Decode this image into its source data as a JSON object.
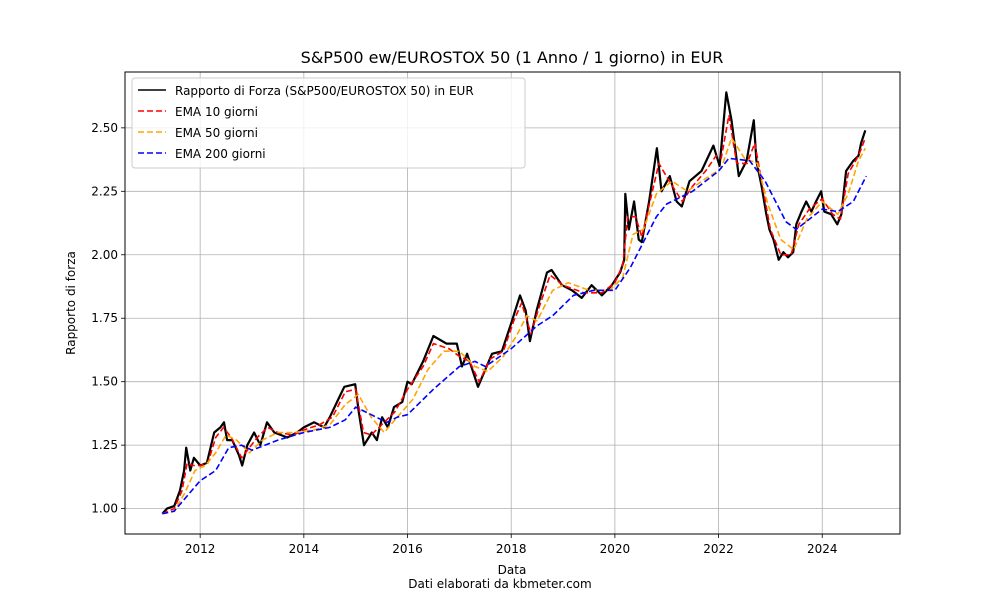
{
  "chart_data": {
    "type": "line",
    "title": "S&P500 ew/EUROSTOX 50 (1 Anno / 1 giorno) in EUR",
    "xlabel": "Data",
    "ylabel": "Rapporto di forza",
    "footnote": "Dati elaborati da kbmeter.com",
    "xlim": [
      2010.55,
      2025.5
    ],
    "ylim": [
      0.9,
      2.72
    ],
    "x_ticks": [
      2012,
      2014,
      2016,
      2018,
      2020,
      2022,
      2024
    ],
    "x_tick_labels": [
      "2012",
      "2014",
      "2016",
      "2018",
      "2020",
      "2022",
      "2024"
    ],
    "y_ticks": [
      1.0,
      1.25,
      1.5,
      1.75,
      2.0,
      2.25,
      2.5
    ],
    "y_tick_labels": [
      "1.00",
      "1.25",
      "1.50",
      "1.75",
      "2.00",
      "2.25",
      "2.50"
    ],
    "grid": true,
    "legend_position": "top-left",
    "series": [
      {
        "name": "Rapporto di Forza (S&P500/EUROSTOX 50) in EUR",
        "color": "#000000",
        "style": "solid",
        "points": [
          [
            2011.27,
            0.98
          ],
          [
            2011.36,
            1.0
          ],
          [
            2011.5,
            1.01
          ],
          [
            2011.61,
            1.07
          ],
          [
            2011.69,
            1.15
          ],
          [
            2011.73,
            1.24
          ],
          [
            2011.81,
            1.15
          ],
          [
            2011.88,
            1.2
          ],
          [
            2012.0,
            1.17
          ],
          [
            2012.13,
            1.18
          ],
          [
            2012.27,
            1.3
          ],
          [
            2012.39,
            1.32
          ],
          [
            2012.46,
            1.34
          ],
          [
            2012.52,
            1.27
          ],
          [
            2012.62,
            1.27
          ],
          [
            2012.75,
            1.21
          ],
          [
            2012.81,
            1.17
          ],
          [
            2012.91,
            1.25
          ],
          [
            2013.04,
            1.3
          ],
          [
            2013.16,
            1.25
          ],
          [
            2013.29,
            1.34
          ],
          [
            2013.43,
            1.3
          ],
          [
            2013.68,
            1.28
          ],
          [
            2013.87,
            1.3
          ],
          [
            2014.0,
            1.32
          ],
          [
            2014.2,
            1.34
          ],
          [
            2014.39,
            1.32
          ],
          [
            2014.5,
            1.36
          ],
          [
            2014.64,
            1.42
          ],
          [
            2014.78,
            1.48
          ],
          [
            2014.99,
            1.49
          ],
          [
            2015.06,
            1.38
          ],
          [
            2015.16,
            1.25
          ],
          [
            2015.31,
            1.3
          ],
          [
            2015.41,
            1.27
          ],
          [
            2015.51,
            1.36
          ],
          [
            2015.62,
            1.32
          ],
          [
            2015.74,
            1.4
          ],
          [
            2015.9,
            1.42
          ],
          [
            2016.0,
            1.5
          ],
          [
            2016.08,
            1.49
          ],
          [
            2016.3,
            1.58
          ],
          [
            2016.5,
            1.68
          ],
          [
            2016.75,
            1.65
          ],
          [
            2016.95,
            1.65
          ],
          [
            2017.05,
            1.56
          ],
          [
            2017.15,
            1.61
          ],
          [
            2017.36,
            1.48
          ],
          [
            2017.63,
            1.61
          ],
          [
            2017.82,
            1.62
          ],
          [
            2018.0,
            1.73
          ],
          [
            2018.17,
            1.84
          ],
          [
            2018.28,
            1.78
          ],
          [
            2018.36,
            1.66
          ],
          [
            2018.49,
            1.78
          ],
          [
            2018.69,
            1.93
          ],
          [
            2018.78,
            1.94
          ],
          [
            2018.98,
            1.88
          ],
          [
            2019.17,
            1.86
          ],
          [
            2019.36,
            1.83
          ],
          [
            2019.55,
            1.88
          ],
          [
            2019.75,
            1.84
          ],
          [
            2019.94,
            1.88
          ],
          [
            2020.1,
            1.93
          ],
          [
            2020.18,
            1.98
          ],
          [
            2020.2,
            2.24
          ],
          [
            2020.27,
            2.1
          ],
          [
            2020.37,
            2.21
          ],
          [
            2020.46,
            2.06
          ],
          [
            2020.52,
            2.05
          ],
          [
            2020.66,
            2.21
          ],
          [
            2020.81,
            2.42
          ],
          [
            2020.9,
            2.25
          ],
          [
            2021.06,
            2.31
          ],
          [
            2021.19,
            2.21
          ],
          [
            2021.29,
            2.19
          ],
          [
            2021.44,
            2.29
          ],
          [
            2021.67,
            2.33
          ],
          [
            2021.9,
            2.43
          ],
          [
            2022.02,
            2.35
          ],
          [
            2022.15,
            2.64
          ],
          [
            2022.25,
            2.53
          ],
          [
            2022.39,
            2.31
          ],
          [
            2022.54,
            2.37
          ],
          [
            2022.68,
            2.53
          ],
          [
            2022.73,
            2.37
          ],
          [
            2022.83,
            2.27
          ],
          [
            2022.92,
            2.16
          ],
          [
            2022.98,
            2.1
          ],
          [
            2023.06,
            2.06
          ],
          [
            2023.16,
            1.98
          ],
          [
            2023.25,
            2.01
          ],
          [
            2023.34,
            1.99
          ],
          [
            2023.44,
            2.01
          ],
          [
            2023.5,
            2.12
          ],
          [
            2023.6,
            2.17
          ],
          [
            2023.69,
            2.21
          ],
          [
            2023.79,
            2.17
          ],
          [
            2023.88,
            2.21
          ],
          [
            2023.98,
            2.25
          ],
          [
            2024.04,
            2.17
          ],
          [
            2024.17,
            2.16
          ],
          [
            2024.29,
            2.12
          ],
          [
            2024.37,
            2.16
          ],
          [
            2024.46,
            2.33
          ],
          [
            2024.6,
            2.37
          ],
          [
            2024.7,
            2.39
          ],
          [
            2024.75,
            2.44
          ],
          [
            2024.83,
            2.49
          ]
        ]
      },
      {
        "name": "EMA 10 giorni",
        "color": "#ff0000",
        "style": "dashed",
        "points": [
          [
            2011.27,
            0.98
          ],
          [
            2011.5,
            1.0
          ],
          [
            2011.65,
            1.07
          ],
          [
            2011.75,
            1.18
          ],
          [
            2011.85,
            1.17
          ],
          [
            2012.0,
            1.17
          ],
          [
            2012.15,
            1.18
          ],
          [
            2012.3,
            1.28
          ],
          [
            2012.45,
            1.32
          ],
          [
            2012.6,
            1.28
          ],
          [
            2012.8,
            1.2
          ],
          [
            2012.95,
            1.24
          ],
          [
            2013.1,
            1.28
          ],
          [
            2013.3,
            1.32
          ],
          [
            2013.5,
            1.3
          ],
          [
            2013.8,
            1.29
          ],
          [
            2014.0,
            1.31
          ],
          [
            2014.3,
            1.33
          ],
          [
            2014.55,
            1.36
          ],
          [
            2014.8,
            1.46
          ],
          [
            2015.0,
            1.47
          ],
          [
            2015.15,
            1.3
          ],
          [
            2015.3,
            1.29
          ],
          [
            2015.5,
            1.33
          ],
          [
            2015.75,
            1.38
          ],
          [
            2016.0,
            1.47
          ],
          [
            2016.3,
            1.56
          ],
          [
            2016.5,
            1.65
          ],
          [
            2016.8,
            1.63
          ],
          [
            2017.0,
            1.6
          ],
          [
            2017.2,
            1.58
          ],
          [
            2017.38,
            1.5
          ],
          [
            2017.6,
            1.59
          ],
          [
            2017.85,
            1.62
          ],
          [
            2018.05,
            1.74
          ],
          [
            2018.2,
            1.81
          ],
          [
            2018.38,
            1.69
          ],
          [
            2018.55,
            1.8
          ],
          [
            2018.75,
            1.92
          ],
          [
            2019.0,
            1.88
          ],
          [
            2019.4,
            1.85
          ],
          [
            2019.75,
            1.85
          ],
          [
            2020.0,
            1.89
          ],
          [
            2020.15,
            1.96
          ],
          [
            2020.25,
            2.15
          ],
          [
            2020.4,
            2.15
          ],
          [
            2020.52,
            2.07
          ],
          [
            2020.7,
            2.23
          ],
          [
            2020.85,
            2.36
          ],
          [
            2021.05,
            2.29
          ],
          [
            2021.3,
            2.21
          ],
          [
            2021.5,
            2.27
          ],
          [
            2021.75,
            2.33
          ],
          [
            2021.95,
            2.39
          ],
          [
            2022.05,
            2.38
          ],
          [
            2022.2,
            2.55
          ],
          [
            2022.35,
            2.36
          ],
          [
            2022.55,
            2.36
          ],
          [
            2022.7,
            2.44
          ],
          [
            2022.85,
            2.27
          ],
          [
            2023.0,
            2.1
          ],
          [
            2023.2,
            2.0
          ],
          [
            2023.4,
            2.0
          ],
          [
            2023.55,
            2.12
          ],
          [
            2023.75,
            2.18
          ],
          [
            2024.0,
            2.22
          ],
          [
            2024.2,
            2.16
          ],
          [
            2024.35,
            2.14
          ],
          [
            2024.5,
            2.32
          ],
          [
            2024.7,
            2.39
          ],
          [
            2024.83,
            2.46
          ]
        ]
      },
      {
        "name": "EMA 50 giorni",
        "color": "#ffa500",
        "style": "dashed",
        "points": [
          [
            2011.27,
            0.98
          ],
          [
            2011.5,
            0.99
          ],
          [
            2011.7,
            1.06
          ],
          [
            2011.9,
            1.15
          ],
          [
            2012.1,
            1.17
          ],
          [
            2012.3,
            1.22
          ],
          [
            2012.5,
            1.29
          ],
          [
            2012.7,
            1.27
          ],
          [
            2012.95,
            1.22
          ],
          [
            2013.2,
            1.27
          ],
          [
            2013.5,
            1.3
          ],
          [
            2013.8,
            1.3
          ],
          [
            2014.2,
            1.31
          ],
          [
            2014.5,
            1.33
          ],
          [
            2014.8,
            1.41
          ],
          [
            2015.05,
            1.45
          ],
          [
            2015.3,
            1.36
          ],
          [
            2015.55,
            1.3
          ],
          [
            2015.8,
            1.36
          ],
          [
            2016.1,
            1.43
          ],
          [
            2016.4,
            1.55
          ],
          [
            2016.7,
            1.62
          ],
          [
            2017.0,
            1.62
          ],
          [
            2017.3,
            1.56
          ],
          [
            2017.55,
            1.54
          ],
          [
            2017.85,
            1.6
          ],
          [
            2018.1,
            1.68
          ],
          [
            2018.3,
            1.76
          ],
          [
            2018.5,
            1.74
          ],
          [
            2018.8,
            1.86
          ],
          [
            2019.1,
            1.89
          ],
          [
            2019.5,
            1.86
          ],
          [
            2019.9,
            1.86
          ],
          [
            2020.15,
            1.91
          ],
          [
            2020.35,
            2.08
          ],
          [
            2020.55,
            2.1
          ],
          [
            2020.8,
            2.24
          ],
          [
            2021.1,
            2.29
          ],
          [
            2021.4,
            2.25
          ],
          [
            2021.75,
            2.3
          ],
          [
            2022.05,
            2.34
          ],
          [
            2022.25,
            2.46
          ],
          [
            2022.5,
            2.38
          ],
          [
            2022.75,
            2.36
          ],
          [
            2022.95,
            2.2
          ],
          [
            2023.2,
            2.06
          ],
          [
            2023.45,
            2.02
          ],
          [
            2023.7,
            2.14
          ],
          [
            2024.0,
            2.21
          ],
          [
            2024.3,
            2.16
          ],
          [
            2024.5,
            2.24
          ],
          [
            2024.7,
            2.37
          ],
          [
            2024.83,
            2.42
          ]
        ]
      },
      {
        "name": "EMA 200 giorni",
        "color": "#0000ff",
        "style": "dashed",
        "points": [
          [
            2011.27,
            0.98
          ],
          [
            2011.5,
            0.99
          ],
          [
            2011.75,
            1.05
          ],
          [
            2012.0,
            1.11
          ],
          [
            2012.3,
            1.15
          ],
          [
            2012.55,
            1.24
          ],
          [
            2012.8,
            1.25
          ],
          [
            2013.0,
            1.23
          ],
          [
            2013.5,
            1.27
          ],
          [
            2014.0,
            1.3
          ],
          [
            2014.5,
            1.32
          ],
          [
            2014.8,
            1.35
          ],
          [
            2015.0,
            1.4
          ],
          [
            2015.3,
            1.37
          ],
          [
            2015.6,
            1.34
          ],
          [
            2015.8,
            1.36
          ],
          [
            2016.0,
            1.37
          ],
          [
            2016.5,
            1.47
          ],
          [
            2017.0,
            1.56
          ],
          [
            2017.3,
            1.58
          ],
          [
            2017.5,
            1.56
          ],
          [
            2018.0,
            1.63
          ],
          [
            2018.5,
            1.72
          ],
          [
            2018.8,
            1.76
          ],
          [
            2019.2,
            1.84
          ],
          [
            2019.6,
            1.86
          ],
          [
            2020.0,
            1.86
          ],
          [
            2020.3,
            1.95
          ],
          [
            2020.5,
            2.03
          ],
          [
            2020.8,
            2.15
          ],
          [
            2021.0,
            2.2
          ],
          [
            2021.5,
            2.25
          ],
          [
            2022.0,
            2.33
          ],
          [
            2022.2,
            2.38
          ],
          [
            2022.6,
            2.37
          ],
          [
            2022.9,
            2.29
          ],
          [
            2023.3,
            2.13
          ],
          [
            2023.5,
            2.1
          ],
          [
            2024.0,
            2.18
          ],
          [
            2024.3,
            2.17
          ],
          [
            2024.6,
            2.21
          ],
          [
            2024.85,
            2.31
          ]
        ]
      }
    ]
  }
}
